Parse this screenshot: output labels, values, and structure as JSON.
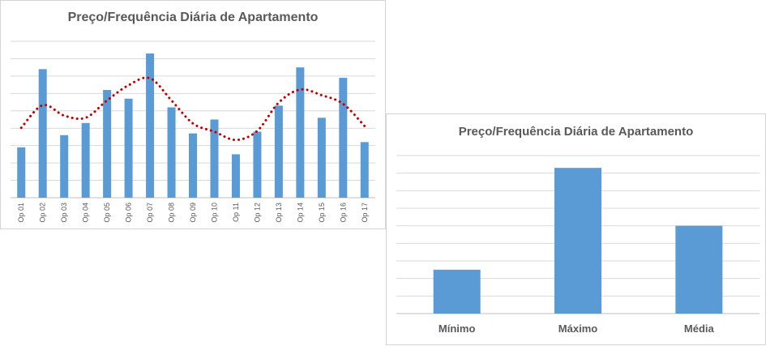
{
  "chart_data": [
    {
      "type": "bar",
      "title": "Preço/Frequência Diária de Apartamento",
      "categories": [
        "Op 01",
        "Op 02",
        "Op 03",
        "Op 04",
        "Op 05",
        "Op 06",
        "Op 07",
        "Op 08",
        "Op 09",
        "Op 10",
        "Op 11",
        "Op 12",
        "Op 13",
        "Op 14",
        "Op 15",
        "Op 16",
        "Op 17"
      ],
      "values": [
        29,
        74,
        36,
        43,
        62,
        57,
        83,
        52,
        37,
        45,
        25,
        38,
        53,
        75,
        46,
        69,
        32
      ],
      "trendline": {
        "style": "dotted",
        "kind": "polynomial",
        "color": "#c00000"
      },
      "ylim": [
        0,
        90
      ],
      "grid": true,
      "bar_color": "#5b9bd5",
      "xlabel": "",
      "ylabel": ""
    },
    {
      "type": "bar",
      "title": "Preço/Frequência Diária de Apartamento",
      "categories": [
        "Mínimo",
        "Máximo",
        "Média"
      ],
      "values": [
        25,
        83,
        50
      ],
      "ylim": [
        0,
        90
      ],
      "grid": true,
      "bar_color": "#5b9bd5",
      "xlabel": "",
      "ylabel": ""
    }
  ]
}
